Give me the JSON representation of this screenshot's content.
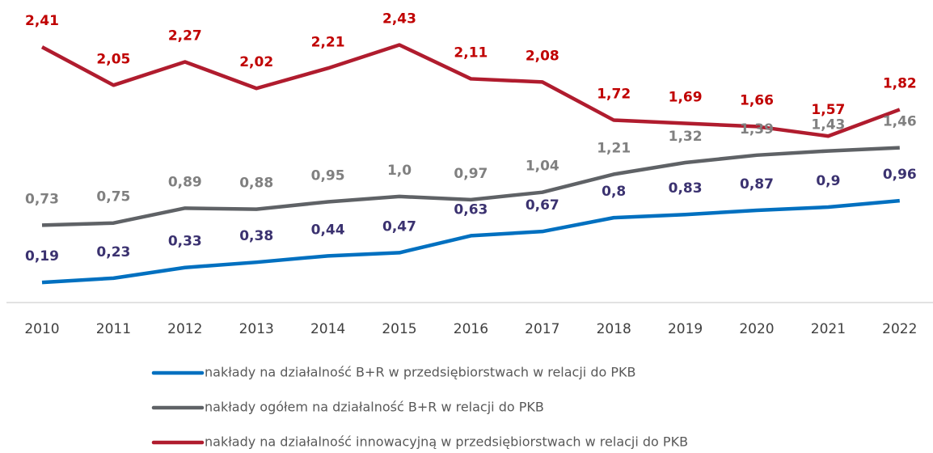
{
  "chart_data": {
    "type": "line",
    "categories": [
      "2010",
      "2011",
      "2012",
      "2013",
      "2014",
      "2015",
      "2016",
      "2017",
      "2018",
      "2019",
      "2020",
      "2021",
      "2022"
    ],
    "ylim": [
      0,
      2.8
    ],
    "legend": "bottom",
    "series": [
      {
        "name": "nakłady na działalność B+R w przedsiębiorstwach w relacji do PKB",
        "color": "#0070c0",
        "label_color": "#3b3270",
        "values": [
          0.19,
          0.23,
          0.33,
          0.38,
          0.44,
          0.47,
          0.63,
          0.67,
          0.8,
          0.83,
          0.87,
          0.9,
          0.96
        ],
        "value_labels": [
          "0,19",
          "0,23",
          "0,33",
          "0,38",
          "0,44",
          "0,47",
          "0,63",
          "0,67",
          "0,8",
          "0,83",
          "0,87",
          "0,9",
          "0,96"
        ]
      },
      {
        "name": "nakłady ogółem na działalność B+R w relacji do PKB",
        "color": "#5f6266",
        "label_color": "#808080",
        "values": [
          0.73,
          0.75,
          0.89,
          0.88,
          0.95,
          1.0,
          0.97,
          1.04,
          1.21,
          1.32,
          1.39,
          1.43,
          1.46
        ],
        "value_labels": [
          "0,73",
          "0,75",
          "0,89",
          "0,88",
          "0,95",
          "1,0",
          "0,97",
          "1,04",
          "1,21",
          "1,32",
          "1,39",
          "1,43",
          "1,46"
        ]
      },
      {
        "name": "nakłady na działalność innowacyjną w przedsiębiorstwach w relacji do PKB",
        "color": "#b01c2e",
        "label_color": "#c00000",
        "values": [
          2.41,
          2.05,
          2.27,
          2.02,
          2.21,
          2.43,
          2.11,
          2.08,
          1.72,
          1.69,
          1.66,
          1.57,
          1.82
        ],
        "value_labels": [
          "2,41",
          "2,05",
          "2,27",
          "2,02",
          "2,21",
          "2,43",
          "2,11",
          "2,08",
          "1,72",
          "1,69",
          "1,66",
          "1,57",
          "1,82"
        ]
      }
    ]
  }
}
